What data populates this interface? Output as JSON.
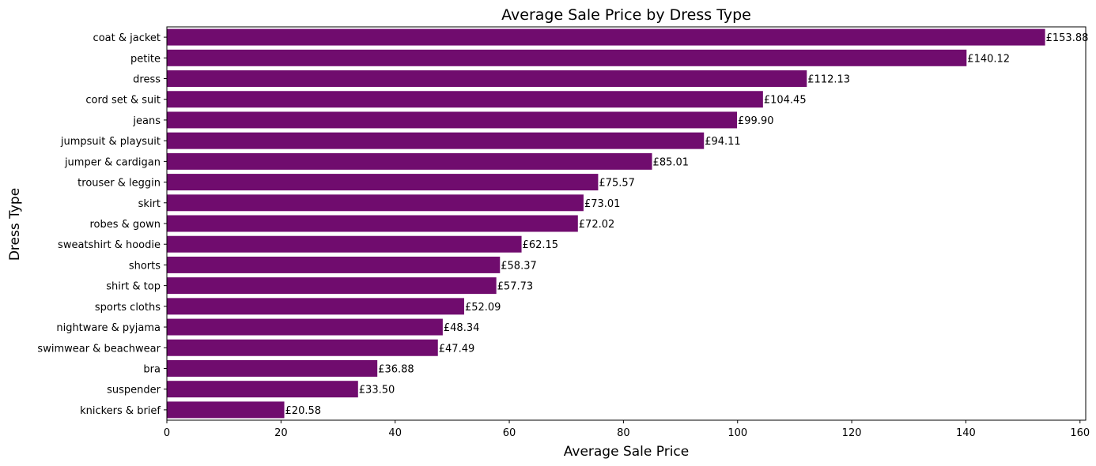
{
  "chart_data": {
    "type": "bar",
    "orientation": "horizontal",
    "title": "Average Sale Price by Dress Type",
    "xlabel": "Average Sale Price",
    "ylabel": "Dress Type",
    "xlim": [
      0,
      161
    ],
    "xticks": [
      0,
      20,
      40,
      60,
      80,
      100,
      120,
      140,
      160
    ],
    "bar_color": "#700C6E",
    "grid": false,
    "label_prefix": "£",
    "categories": [
      "coat & jacket",
      "petite",
      "dress",
      "cord set & suit",
      "jeans",
      "jumpsuit & playsuit",
      "jumper & cardigan",
      "trouser & leggin",
      "skirt",
      "robes & gown",
      "sweatshirt & hoodie",
      "shorts",
      "shirt & top",
      "sports cloths",
      "nightware & pyjama",
      "swimwear & beachwear",
      "bra",
      "suspender",
      "knickers & brief"
    ],
    "values": [
      153.88,
      140.12,
      112.13,
      104.45,
      99.9,
      94.11,
      85.01,
      75.57,
      73.01,
      72.02,
      62.15,
      58.37,
      57.73,
      52.09,
      48.34,
      47.49,
      36.88,
      33.5,
      20.58
    ],
    "data_labels": [
      "£153.88",
      "£140.12",
      "£112.13",
      "£104.45",
      "£99.90",
      "£94.11",
      "£85.01",
      "£75.57",
      "£73.01",
      "£72.02",
      "£62.15",
      "£58.37",
      "£57.73",
      "£52.09",
      "£48.34",
      "£47.49",
      "£36.88",
      "£33.50",
      "£20.58"
    ]
  }
}
